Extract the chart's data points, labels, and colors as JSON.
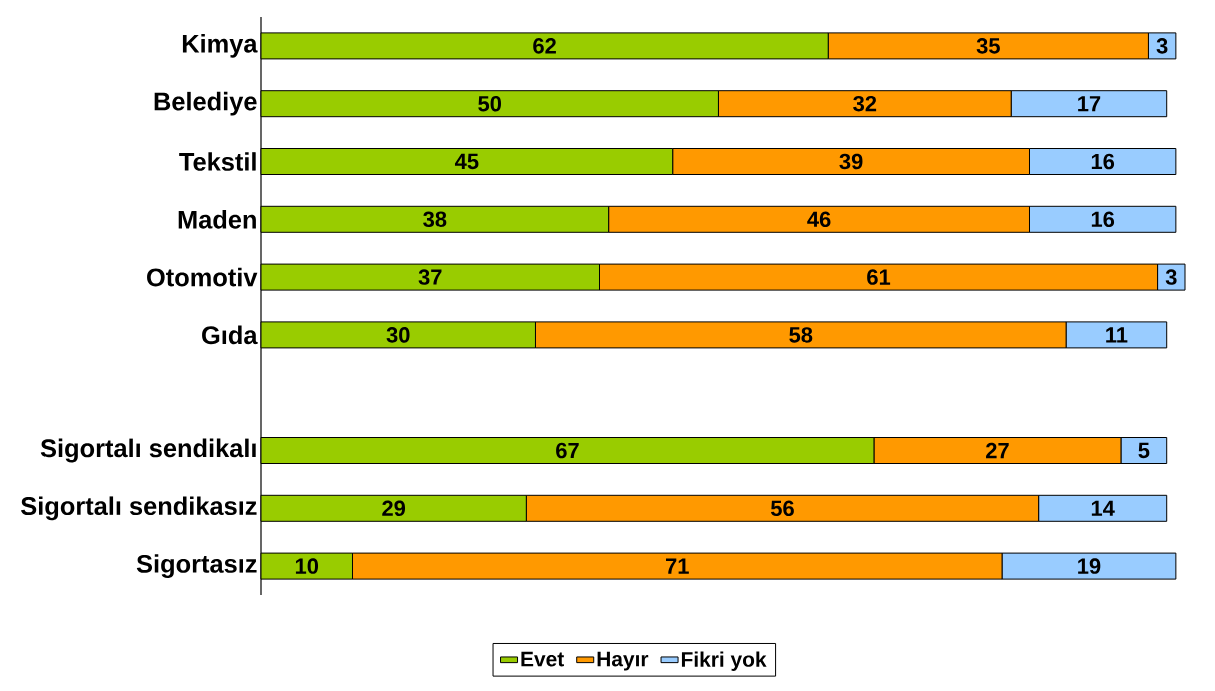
{
  "chart_data": {
    "type": "bar",
    "orientation": "horizontal",
    "stacked": true,
    "data_labels": true,
    "legend": "bottom",
    "tick_labels": "y",
    "categories": [
      "Kimya",
      "Belediye",
      "Tekstil",
      "Maden",
      "Otomotiv",
      "Gıda",
      null,
      "Sigortalı sendikalı",
      "Sigortalı sendikasız",
      "Sigortasız"
    ],
    "series": [
      {
        "name": "Evet",
        "color": "#99cc00",
        "values": [
          62,
          50,
          45,
          38,
          37,
          30,
          null,
          67,
          29,
          10
        ]
      },
      {
        "name": "Hayır",
        "color": "#ff9900",
        "values": [
          35,
          32,
          39,
          46,
          61,
          58,
          null,
          27,
          56,
          71
        ]
      },
      {
        "name": "Fikri yok",
        "color": "#99ccff",
        "values": [
          3,
          17,
          16,
          16,
          3,
          11,
          null,
          5,
          14,
          19
        ]
      }
    ]
  }
}
